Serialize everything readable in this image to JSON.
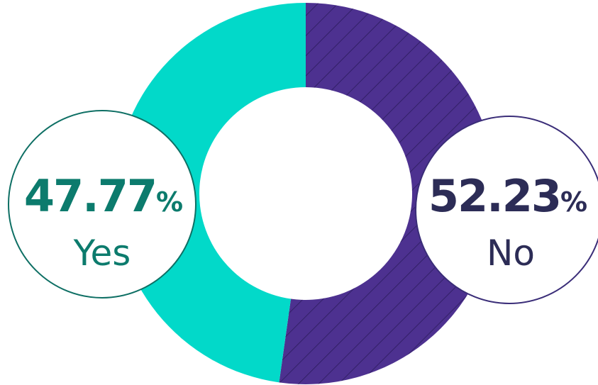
{
  "chart_data": {
    "type": "pie",
    "variant": "donut",
    "categories": [
      "Yes",
      "No"
    ],
    "values": [
      47.77,
      52.23
    ],
    "unit": "%",
    "series": [
      {
        "values": [
          47.77,
          52.23
        ]
      }
    ],
    "labels": [
      {
        "category": "Yes",
        "value_text": "47.77",
        "unit": "%",
        "label": "Yes"
      },
      {
        "category": "No",
        "value_text": "52.23",
        "unit": "%",
        "label": "No"
      }
    ],
    "colors": {
      "Yes": "#02d9c9",
      "No": "#4d3190",
      "hatch": "#2b1b5c",
      "yes_text": "#0c7b6d",
      "no_text": "#2c2c56",
      "yes_border": "#0e6f64",
      "no_border": "#3a2d78"
    },
    "hatched_series": "No",
    "start_angle": "12 o'clock",
    "direction": "clockwise from No"
  }
}
